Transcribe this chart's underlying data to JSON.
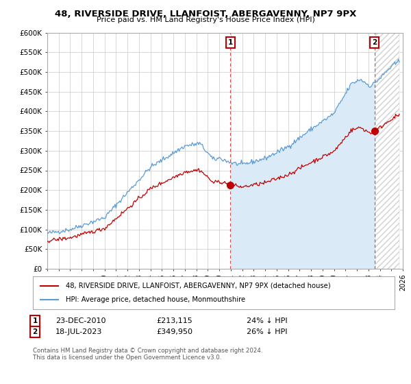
{
  "title": "48, RIVERSIDE DRIVE, LLANFOIST, ABERGAVENNY, NP7 9PX",
  "subtitle": "Price paid vs. HM Land Registry's House Price Index (HPI)",
  "legend_line1": "48, RIVERSIDE DRIVE, LLANFOIST, ABERGAVENNY, NP7 9PX (detached house)",
  "legend_line2": "HPI: Average price, detached house, Monmouthshire",
  "annotation1_date": "23-DEC-2010",
  "annotation1_price": "£213,115",
  "annotation1_hpi": "24% ↓ HPI",
  "annotation1_year": 2010.97,
  "annotation1_value": 213115,
  "annotation2_date": "18-JUL-2023",
  "annotation2_price": "£349,950",
  "annotation2_hpi": "26% ↓ HPI",
  "annotation2_year": 2023.54,
  "annotation2_value": 349950,
  "hpi_color": "#5b9bd5",
  "price_color": "#c00000",
  "shade_color": "#dbeaf7",
  "background_color": "#ffffff",
  "grid_color": "#c8c8c8",
  "xmin": 1995,
  "xmax": 2026,
  "ymin": 0,
  "ymax": 600000,
  "yticks": [
    0,
    50000,
    100000,
    150000,
    200000,
    250000,
    300000,
    350000,
    400000,
    450000,
    500000,
    550000,
    600000
  ],
  "ytick_labels": [
    "£0",
    "£50K",
    "£100K",
    "£150K",
    "£200K",
    "£250K",
    "£300K",
    "£350K",
    "£400K",
    "£450K",
    "£500K",
    "£550K",
    "£600K"
  ],
  "footer": "Contains HM Land Registry data © Crown copyright and database right 2024.\nThis data is licensed under the Open Government Licence v3.0.",
  "marker1_x": 2010.97,
  "marker2_x": 2023.54
}
